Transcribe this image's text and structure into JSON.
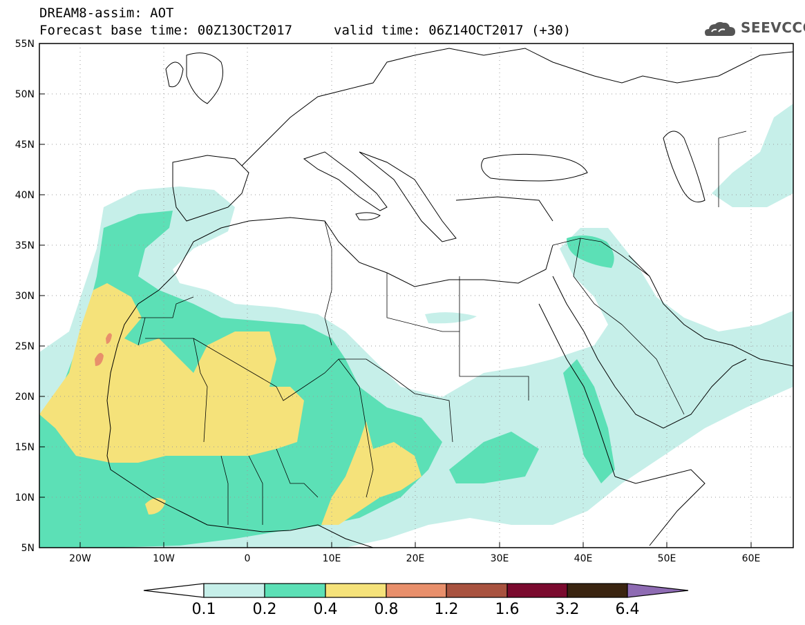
{
  "header": {
    "title": "DREAM8-assim: AOT",
    "base_time": "Forecast base time: 00Z13OCT2017",
    "valid_time": "valid time: 06Z14OCT2017 (+30)"
  },
  "logo": {
    "text": "SEEVCCC",
    "icon": "cloud-logo-icon"
  },
  "axes": {
    "lat_labels": [
      "55N",
      "50N",
      "45N",
      "40N",
      "35N",
      "30N",
      "25N",
      "20N",
      "15N",
      "10N",
      "5N"
    ],
    "lon_labels": [
      "20W",
      "10W",
      "0",
      "10E",
      "20E",
      "30E",
      "40E",
      "50E",
      "60E"
    ]
  },
  "colorbar": {
    "labels": [
      "0.1",
      "0.2",
      "0.4",
      "0.8",
      "1.2",
      "1.6",
      "3.2",
      "6.4"
    ],
    "colors": [
      "#ffffff",
      "#c6efe9",
      "#5ce0b6",
      "#f5e27a",
      "#e88f6b",
      "#a8523f",
      "#7a0a2e",
      "#3a2410",
      "#8e6bb3"
    ]
  },
  "field_colors": {
    "low": "#c6efe9",
    "mid": "#5ce0b6",
    "high": "#f5e27a",
    "peak": "#e88f6b"
  }
}
